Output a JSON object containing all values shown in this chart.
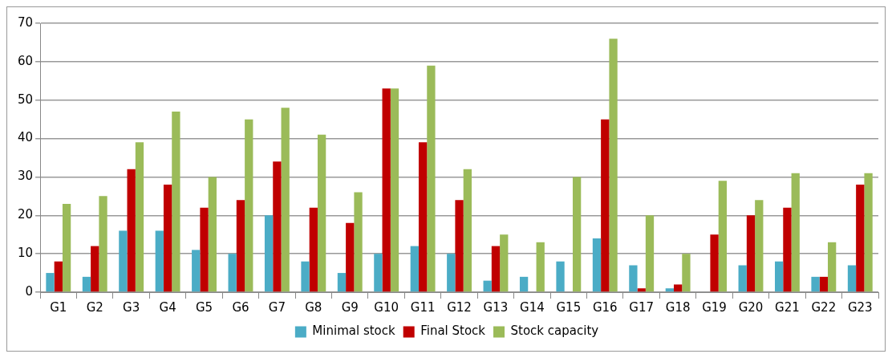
{
  "chart_data": {
    "type": "bar",
    "categories": [
      "G1",
      "G2",
      "G3",
      "G4",
      "G5",
      "G6",
      "G7",
      "G8",
      "G9",
      "G10",
      "G11",
      "G12",
      "G13",
      "G14",
      "G15",
      "G16",
      "G17",
      "G18",
      "G19",
      "G20",
      "G21",
      "G22",
      "G23"
    ],
    "series": [
      {
        "name": "Minimal stock",
        "color": "#4bacc6",
        "values": [
          5,
          4,
          16,
          16,
          11,
          10,
          20,
          8,
          5,
          10,
          12,
          10,
          3,
          4,
          8,
          14,
          7,
          1,
          0,
          7,
          8,
          4,
          7
        ]
      },
      {
        "name": "Final Stock",
        "color": "#c00000",
        "values": [
          8,
          12,
          32,
          28,
          22,
          24,
          34,
          22,
          18,
          53,
          39,
          24,
          12,
          0,
          0,
          45,
          1,
          2,
          15,
          20,
          22,
          4,
          28
        ]
      },
      {
        "name": "Stock capacity",
        "color": "#9bbb59",
        "values": [
          23,
          25,
          39,
          47,
          30,
          45,
          48,
          41,
          26,
          53,
          59,
          32,
          15,
          13,
          30,
          66,
          20,
          10,
          29,
          24,
          31,
          13,
          31
        ]
      }
    ],
    "ylim": [
      0,
      70
    ],
    "yticks": [
      0,
      10,
      20,
      30,
      40,
      50,
      60,
      70
    ],
    "grid": "y",
    "legend": "bottom"
  }
}
